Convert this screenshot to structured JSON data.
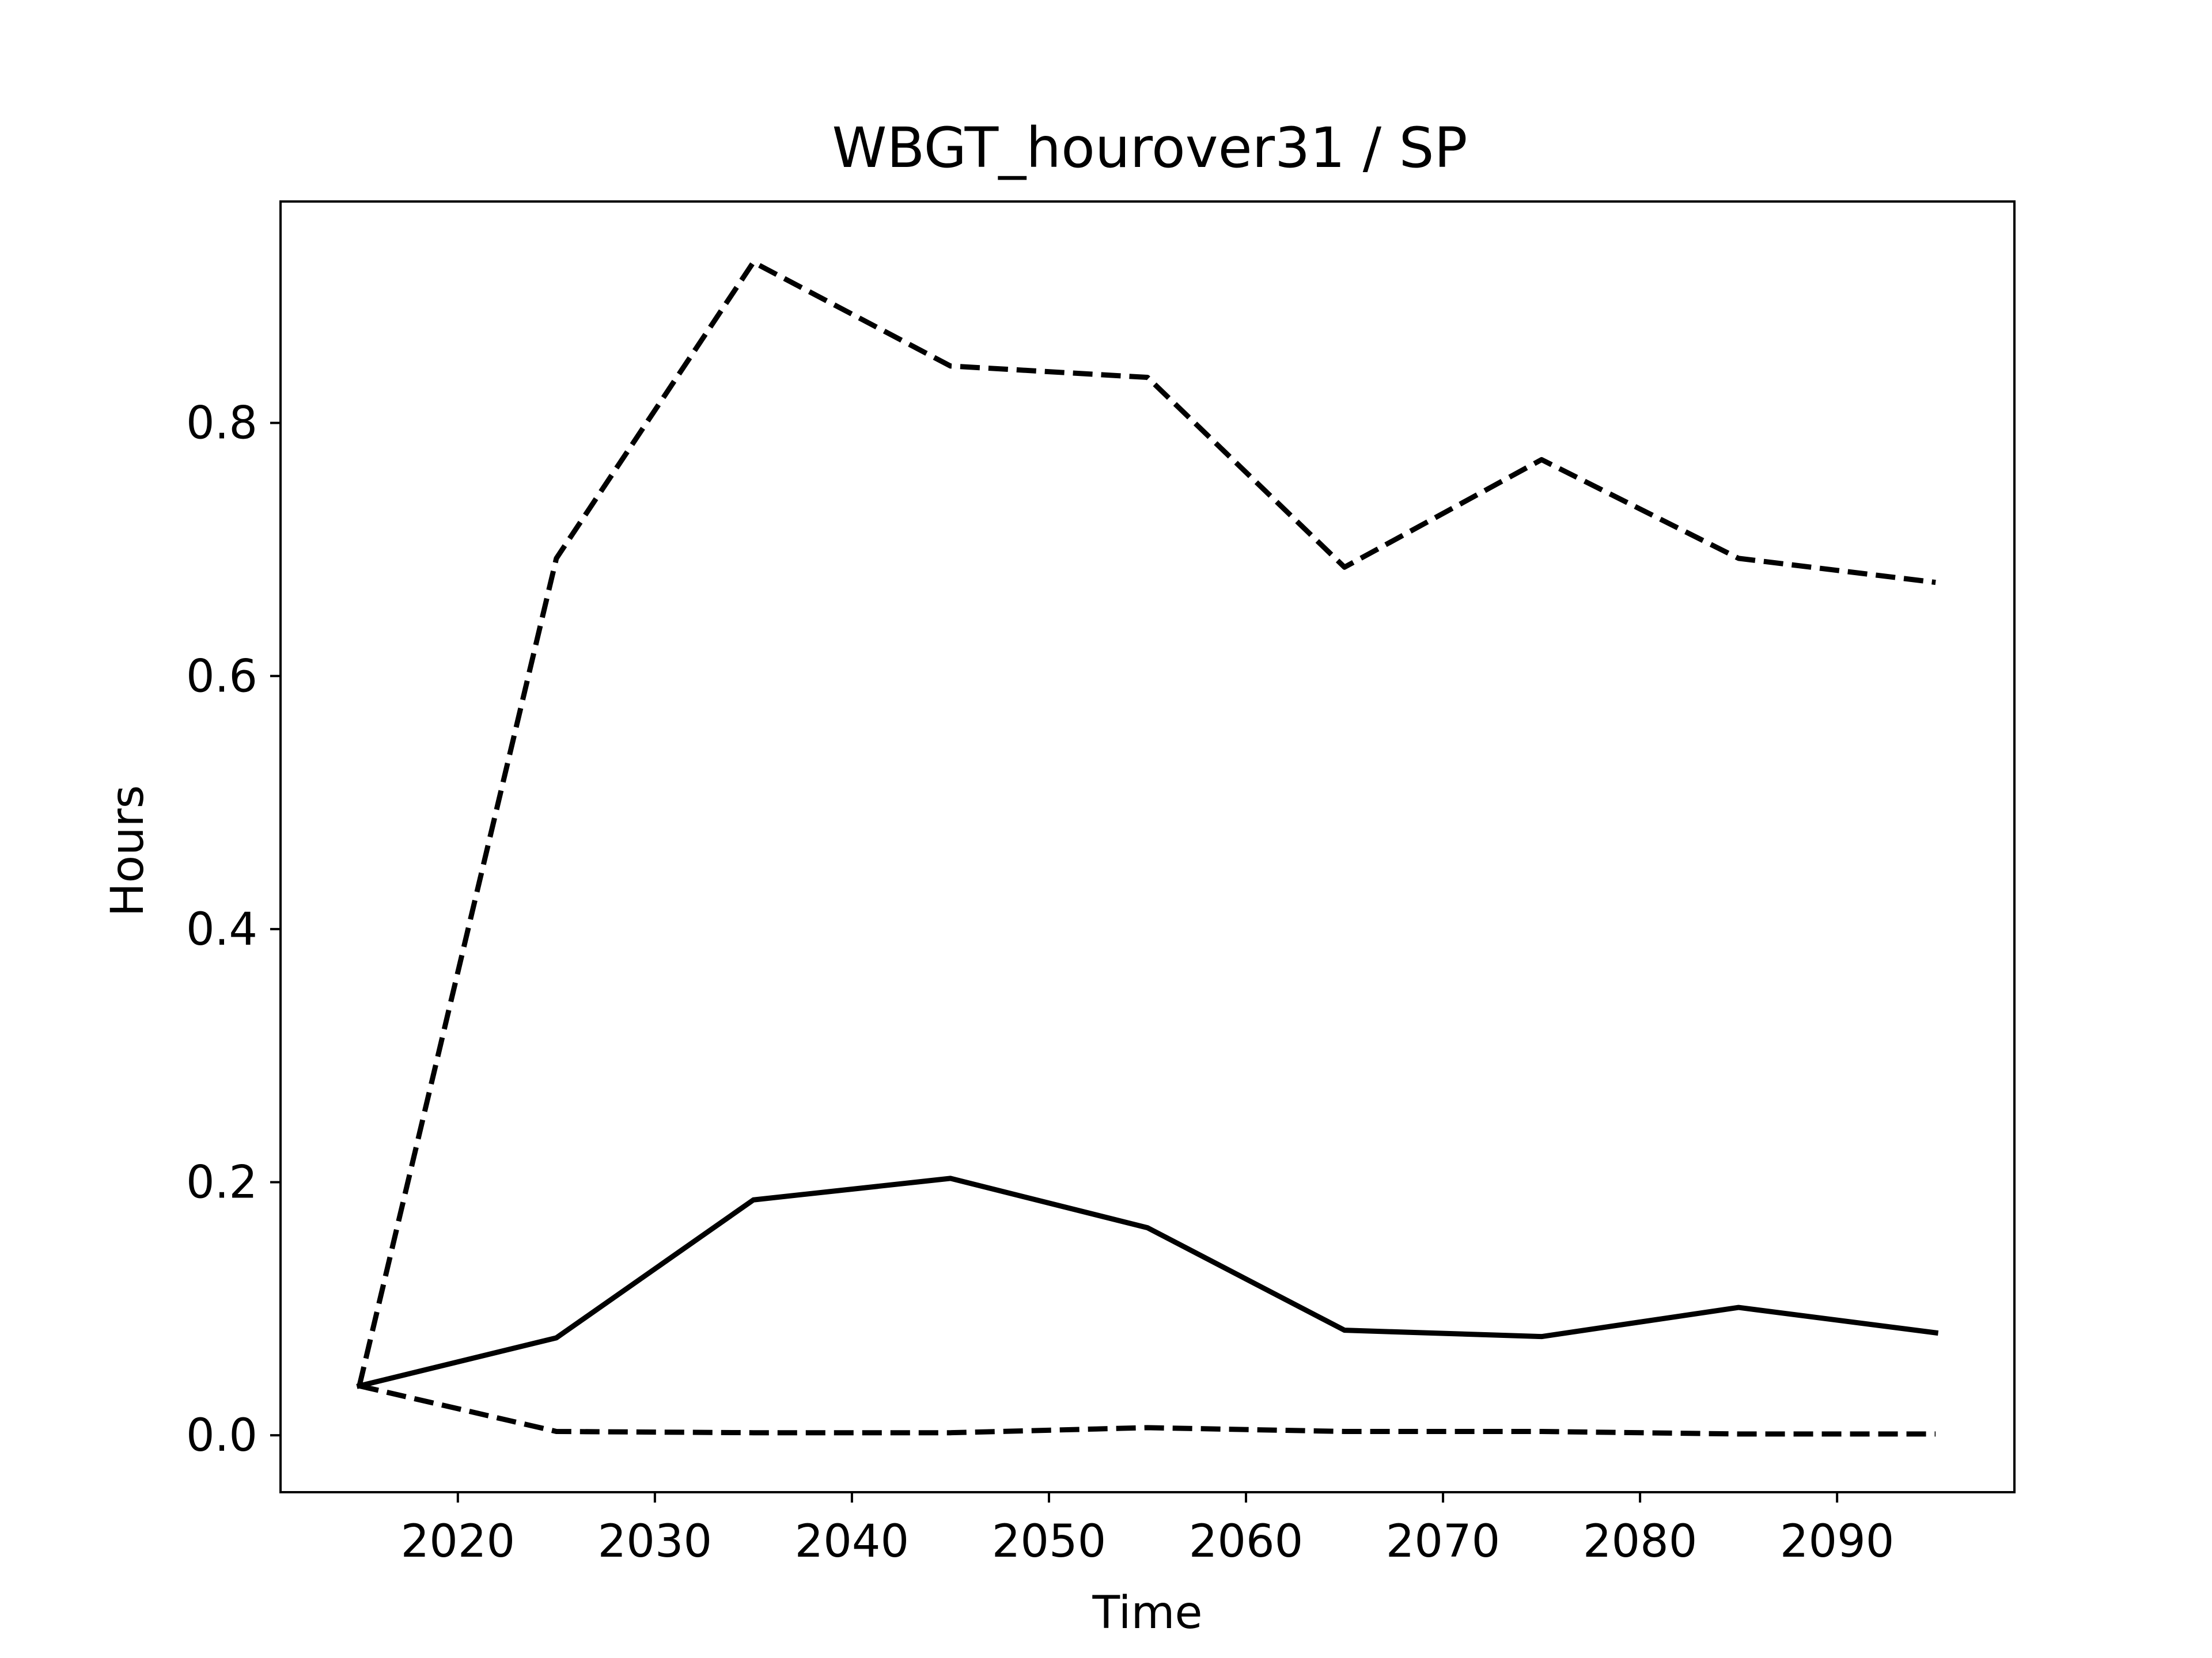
{
  "chart_data": {
    "type": "line",
    "title": "WBGT_hourover31 / SP",
    "xlabel": "Time",
    "ylabel": "Hours",
    "xlim": [
      2011,
      2099
    ],
    "ylim": [
      -0.045,
      0.975
    ],
    "grid": false,
    "x": [
      2015,
      2025,
      2035,
      2045,
      2055,
      2065,
      2075,
      2085,
      2095
    ],
    "x_ticks": [
      2020,
      2030,
      2040,
      2050,
      2060,
      2070,
      2080,
      2090
    ],
    "x_tick_labels": [
      "2020",
      "2030",
      "2040",
      "2050",
      "2060",
      "2070",
      "2080",
      "2090"
    ],
    "y_ticks": [
      0.0,
      0.2,
      0.4,
      0.6,
      0.8
    ],
    "y_tick_labels": [
      "0.0",
      "0.2",
      "0.4",
      "0.6",
      "0.8"
    ],
    "series": [
      {
        "id": "mean",
        "style": "solid",
        "color": "#000000",
        "values": [
          0.039,
          0.077,
          0.186,
          0.203,
          0.164,
          0.083,
          0.078,
          0.101,
          0.081
        ]
      },
      {
        "id": "upper",
        "style": "dashed",
        "color": "#000000",
        "values": [
          0.039,
          0.693,
          0.927,
          0.845,
          0.836,
          0.686,
          0.771,
          0.693,
          0.674
        ]
      },
      {
        "id": "lower",
        "style": "dashed",
        "color": "#000000",
        "values": [
          0.039,
          0.003,
          0.002,
          0.002,
          0.006,
          0.003,
          0.003,
          0.001,
          0.001
        ]
      }
    ]
  }
}
